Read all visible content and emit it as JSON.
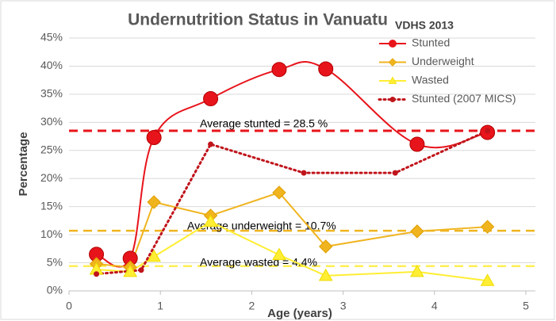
{
  "chart_data": {
    "type": "line",
    "title": "Undernutrition Status in Vanuatu",
    "subtitle": "VDHS 2013",
    "x_label": "Age (years)",
    "y_label": "Percentage",
    "xlim": [
      0,
      5
    ],
    "xticks": [
      0,
      1,
      2,
      3,
      4,
      5
    ],
    "ylim": [
      0,
      45
    ],
    "yticks": [
      {
        "value": 0,
        "label": "0%"
      },
      {
        "value": 5,
        "label": "5%"
      },
      {
        "value": 10,
        "label": "10%"
      },
      {
        "value": 15,
        "label": "15%"
      },
      {
        "value": 20,
        "label": "20%"
      },
      {
        "value": 25,
        "label": "25%"
      },
      {
        "value": 30,
        "label": "30%"
      },
      {
        "value": 35,
        "label": "35%"
      },
      {
        "value": 40,
        "label": "40%"
      },
      {
        "value": 45,
        "label": "45%"
      }
    ],
    "grid": true,
    "legend": "top-right",
    "series": [
      {
        "name": "Stunted",
        "color": "#e8141b",
        "marker": "circle",
        "line": "smooth",
        "x": [
          0.3,
          0.67,
          0.93,
          1.55,
          2.3,
          2.81,
          3.81,
          4.58
        ],
        "values": [
          6.5,
          5.8,
          27.3,
          34.2,
          39.4,
          39.5,
          26.1,
          28.2
        ]
      },
      {
        "name": "Underweight",
        "color": "#f0b41e",
        "marker": "diamond",
        "line": "straight",
        "x": [
          0.3,
          0.67,
          0.93,
          1.55,
          2.3,
          2.81,
          3.81,
          4.58
        ],
        "values": [
          4.8,
          4.2,
          15.8,
          13.4,
          17.5,
          7.9,
          10.6,
          11.4
        ]
      },
      {
        "name": "Wasted",
        "color": "#ffee33",
        "marker": "triangle",
        "line": "straight",
        "x": [
          0.3,
          0.67,
          0.93,
          1.55,
          2.3,
          2.81,
          3.81,
          4.58
        ],
        "values": [
          3.8,
          3.4,
          6.1,
          12.3,
          6.4,
          2.7,
          3.4,
          1.8
        ]
      },
      {
        "name": "Stunted (2007 MICS)",
        "color": "#c0141b",
        "marker": "dot",
        "line": "dotted",
        "x": [
          0.3,
          0.79,
          1.55,
          2.57,
          3.57,
          4.58
        ],
        "values": [
          3.0,
          3.7,
          26.1,
          21.0,
          21.0,
          28.5
        ]
      }
    ],
    "reference_lines": [
      {
        "label": "Average stunted = 28.5 %",
        "value": 28.5,
        "color": "#e8141b"
      },
      {
        "label": "Average underweight  = 10.7%",
        "value": 10.7,
        "color": "#f0b41e"
      },
      {
        "label": "Average wasted = 4.4%",
        "value": 4.4,
        "color": "#ffee55"
      }
    ]
  }
}
